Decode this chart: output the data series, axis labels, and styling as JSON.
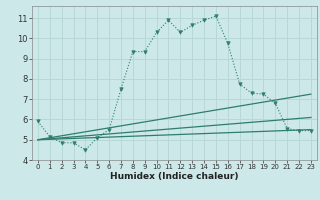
{
  "background_color": "#cce8e8",
  "grid_color": "#b8d8d8",
  "line_color": "#2e7d6e",
  "xlabel": "Humidex (Indice chaleur)",
  "xlim": [
    -0.5,
    23.5
  ],
  "ylim": [
    4.0,
    11.6
  ],
  "yticks": [
    4,
    5,
    6,
    7,
    8,
    9,
    10,
    11
  ],
  "xticks": [
    0,
    1,
    2,
    3,
    4,
    5,
    6,
    7,
    8,
    9,
    10,
    11,
    12,
    13,
    14,
    15,
    16,
    17,
    18,
    19,
    20,
    21,
    22,
    23
  ],
  "curve1_x": [
    0,
    1,
    2,
    3,
    4,
    5,
    6,
    7,
    8,
    9,
    10,
    11,
    12,
    13,
    14,
    15,
    16,
    17,
    18,
    19,
    20,
    21,
    22,
    23
  ],
  "curve1_y": [
    5.9,
    5.15,
    4.85,
    4.85,
    4.5,
    5.1,
    5.5,
    7.5,
    9.35,
    9.35,
    10.3,
    10.9,
    10.3,
    10.65,
    10.9,
    11.1,
    9.75,
    7.75,
    7.3,
    7.25,
    6.8,
    5.55,
    5.45,
    5.45
  ],
  "curve2_x": [
    0,
    23
  ],
  "curve2_y": [
    5.0,
    7.25
  ],
  "curve3_x": [
    0,
    23
  ],
  "curve3_y": [
    5.0,
    6.1
  ],
  "curve4_x": [
    0,
    23
  ],
  "curve4_y": [
    5.0,
    5.5
  ]
}
